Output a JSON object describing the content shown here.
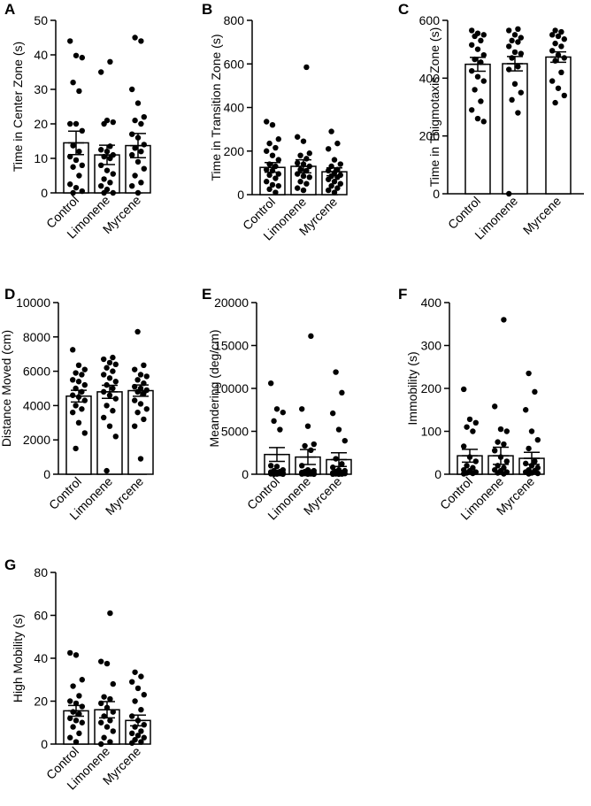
{
  "figure": {
    "colors": {
      "bar_fill": "#ffffff",
      "stroke": "#000000",
      "point": "#000000"
    }
  },
  "chart_data": [
    {
      "panel": "A",
      "type": "bar",
      "ylabel": "Time in Center Zone (s)",
      "ylim": [
        0,
        50
      ],
      "yticks": [
        0,
        10,
        20,
        30,
        40,
        50
      ],
      "categories": [
        "Control",
        "Limonene",
        "Myrcene"
      ],
      "values": [
        14.5,
        11,
        13.7
      ],
      "sem": [
        3.4,
        2.8,
        3.5
      ],
      "points": [
        [
          44,
          39.8,
          39.2,
          32,
          29.5,
          20,
          20,
          18,
          13.7,
          12,
          10.5,
          9.5,
          8,
          7.5,
          5,
          2.5,
          1.5,
          0.5,
          0
        ],
        [
          38,
          35,
          21,
          20.5,
          20,
          13.5,
          12.5,
          12,
          11,
          10.5,
          10,
          8,
          6.5,
          5.5,
          4,
          3,
          2,
          1,
          0,
          0
        ],
        [
          45,
          44,
          30,
          26,
          22,
          21,
          20,
          17,
          16,
          14,
          13,
          12,
          11,
          9,
          7,
          5,
          3,
          2,
          0
        ]
      ]
    },
    {
      "panel": "B",
      "type": "bar",
      "ylabel": "Time in Transition Zone (s)",
      "ylim": [
        0,
        800
      ],
      "yticks": [
        0,
        200,
        400,
        600,
        800
      ],
      "categories": [
        "Control",
        "Limonene",
        "Myrcene"
      ],
      "values": [
        125,
        130,
        105
      ],
      "sem": [
        22,
        30,
        18
      ],
      "points": [
        [
          335,
          320,
          255,
          235,
          215,
          200,
          180,
          160,
          140,
          130,
          115,
          110,
          95,
          90,
          75,
          60,
          45,
          40,
          25,
          10
        ],
        [
          585,
          265,
          245,
          190,
          180,
          165,
          145,
          140,
          130,
          115,
          110,
          95,
          85,
          80,
          60,
          50,
          30,
          20
        ],
        [
          290,
          235,
          210,
          160,
          140,
          130,
          115,
          110,
          100,
          90,
          85,
          80,
          70,
          60,
          50,
          40,
          30,
          20,
          10
        ]
      ]
    },
    {
      "panel": "C",
      "type": "bar",
      "ylabel": "Time in Thigmotaxis Zone (s)",
      "ylim": [
        0,
        600
      ],
      "yticks": [
        0,
        200,
        400,
        600
      ],
      "categories": [
        "Control",
        "Limonene",
        "Myrcene"
      ],
      "values": [
        448,
        450,
        473
      ],
      "sem": [
        24,
        25,
        18
      ],
      "points": [
        [
          565,
          555,
          550,
          545,
          530,
          515,
          500,
          480,
          465,
          455,
          425,
          405,
          390,
          360,
          320,
          290,
          260,
          250
        ],
        [
          570,
          565,
          550,
          540,
          530,
          525,
          510,
          490,
          485,
          470,
          440,
          430,
          380,
          350,
          325,
          280,
          0
        ],
        [
          565,
          560,
          550,
          545,
          535,
          520,
          510,
          495,
          480,
          470,
          460,
          420,
          390,
          365,
          340,
          315
        ]
      ]
    },
    {
      "panel": "D",
      "type": "bar",
      "ylabel": "Distance Moved (cm)",
      "ylim": [
        0,
        10000
      ],
      "yticks": [
        0,
        2000,
        4000,
        6000,
        8000,
        10000
      ],
      "categories": [
        "Control",
        "Limonene",
        "Myrcene"
      ],
      "values": [
        4550,
        4800,
        4870
      ],
      "sem": [
        340,
        380,
        330
      ],
      "points": [
        [
          7250,
          6350,
          6100,
          5900,
          5800,
          5500,
          5400,
          5200,
          5000,
          4800,
          4600,
          4500,
          4300,
          4000,
          3800,
          3600,
          3000,
          2400,
          1500
        ],
        [
          6800,
          6700,
          6500,
          6400,
          6200,
          6000,
          5800,
          5600,
          5400,
          5200,
          5000,
          4800,
          4600,
          4400,
          4000,
          3700,
          3300,
          2800,
          2200,
          200
        ],
        [
          8300,
          6350,
          6100,
          5800,
          5700,
          5500,
          5300,
          5100,
          5000,
          4900,
          4800,
          4700,
          4300,
          4100,
          3800,
          3600,
          3200,
          2800,
          900
        ]
      ]
    },
    {
      "panel": "E",
      "type": "bar",
      "ylabel": "Meandering (deg/cm)",
      "ylim": [
        0,
        20000
      ],
      "yticks": [
        0,
        5000,
        10000,
        15000,
        20000
      ],
      "categories": [
        "Control",
        "Limonene",
        "Myrcene"
      ],
      "values": [
        2300,
        2000,
        1700
      ],
      "sem": [
        800,
        870,
        800
      ],
      "points": [
        [
          10600,
          7600,
          7200,
          6200,
          5200,
          1000,
          900,
          500,
          400,
          300,
          250,
          200,
          150,
          100,
          80,
          50,
          30,
          20,
          10
        ],
        [
          16100,
          7600,
          5600,
          3500,
          3300,
          2800,
          1000,
          500,
          400,
          300,
          250,
          200,
          150,
          100,
          80,
          50,
          30,
          20,
          10
        ],
        [
          11900,
          9500,
          7100,
          5200,
          3900,
          1800,
          1200,
          800,
          500,
          400,
          300,
          200,
          150,
          100,
          80,
          50,
          30,
          20,
          10
        ]
      ]
    },
    {
      "panel": "F",
      "type": "bar",
      "ylabel": "Immobility (s)",
      "ylim": [
        0,
        400
      ],
      "yticks": [
        0,
        100,
        200,
        300,
        400
      ],
      "categories": [
        "Control",
        "Limonene",
        "Myrcene"
      ],
      "values": [
        43,
        43,
        37
      ],
      "sem": [
        15,
        20,
        14
      ],
      "points": [
        [
          198,
          128,
          120,
          110,
          100,
          65,
          40,
          30,
          20,
          15,
          10,
          8,
          5,
          3,
          2,
          1
        ],
        [
          360,
          158,
          105,
          100,
          75,
          70,
          55,
          40,
          30,
          20,
          15,
          10,
          8,
          5,
          3,
          1
        ],
        [
          235,
          192,
          150,
          100,
          80,
          60,
          30,
          25,
          20,
          15,
          10,
          8,
          5,
          3,
          2,
          1
        ]
      ]
    },
    {
      "panel": "G",
      "type": "bar",
      "ylabel": "High Mobility (s)",
      "ylim": [
        0,
        80
      ],
      "yticks": [
        0,
        20,
        40,
        60,
        80
      ],
      "categories": [
        "Control",
        "Limonene",
        "Myrcene"
      ],
      "values": [
        15.5,
        16,
        11
      ],
      "sem": [
        2.5,
        3.8,
        2.5
      ],
      "points": [
        [
          42.5,
          41.5,
          30,
          27,
          22.5,
          20,
          19,
          17.5,
          15,
          14,
          12,
          11,
          10,
          8,
          5,
          3,
          1
        ],
        [
          61,
          38.5,
          37.5,
          28,
          22,
          21,
          19,
          17,
          15,
          13,
          11,
          10,
          8,
          6,
          3,
          1,
          0
        ],
        [
          33.5,
          31.5,
          29,
          26,
          23,
          20,
          16,
          13,
          11,
          9,
          8,
          6,
          5,
          4,
          3,
          2,
          1,
          0.5
        ]
      ]
    }
  ]
}
